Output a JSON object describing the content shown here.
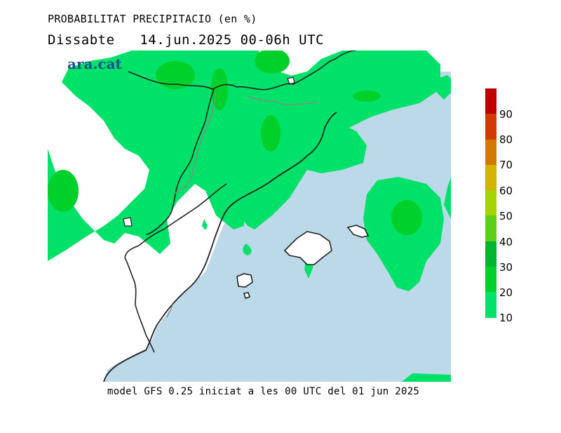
{
  "title": "PROBABILITAT PRECIPITACIO (en %)",
  "subtitle": "Dissabte   14.jun.2025 00-06h UTC",
  "brand": "ara.cat",
  "footer": "model GFS 0.25 iniciat a les 00 UTC del 01 jun 2025",
  "colors": {
    "sea": "#bcd9ea",
    "land": "#ffffff",
    "p10": "#00e16a",
    "p20": "#00d12a",
    "p30": "#00b52f"
  },
  "legend": {
    "labels": [
      "90",
      "80",
      "70",
      "60",
      "50",
      "40",
      "30",
      "20",
      "10"
    ],
    "colors": [
      "#c00000",
      "#d23a00",
      "#d27800",
      "#d2b400",
      "#a6d200",
      "#5bcf1a",
      "#00b52f",
      "#00d12a",
      "#00e16a"
    ]
  }
}
